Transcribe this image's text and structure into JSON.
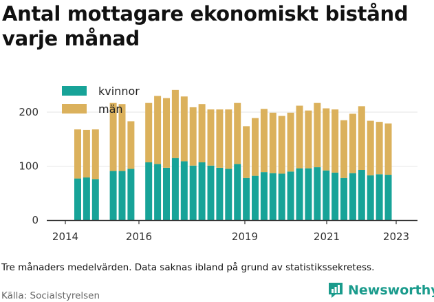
{
  "title": "Antal mottagare ekonomiskt bistånd varje månad",
  "note": "Tre månaders medelvärden. Data saknas ibland på grund av statistikssekretess.",
  "source": "Källa: Socialstyrelsen",
  "brand": "Newsworthy",
  "colors": {
    "kvinnor": "#17a398",
    "man": "#dbb15c",
    "grid": "#e6e6e6",
    "axis": "#333333"
  },
  "chart_data": {
    "type": "bar",
    "stacked": true,
    "x_ticks": [
      "2014",
      "2016",
      "2019",
      "2021",
      "2023"
    ],
    "y_ticks": [
      "0",
      "100",
      "200"
    ],
    "ylim": [
      0,
      250
    ],
    "legend_position": "top-left",
    "grid": true,
    "series": [
      {
        "name": "kvinnor",
        "values": [
          77,
          79,
          76,
          null,
          91,
          91,
          95,
          null,
          107,
          104,
          97,
          115,
          109,
          101,
          107,
          101,
          97,
          95,
          104,
          78,
          82,
          89,
          87,
          86,
          90,
          96,
          96,
          98,
          92,
          88,
          78,
          87,
          93,
          83,
          85,
          84
        ]
      },
      {
        "name": "män",
        "values": [
          91,
          88,
          92,
          null,
          126,
          124,
          88,
          null,
          110,
          126,
          129,
          126,
          120,
          108,
          108,
          104,
          108,
          110,
          113,
          96,
          107,
          117,
          112,
          107,
          109,
          116,
          107,
          119,
          115,
          117,
          107,
          110,
          118,
          101,
          97,
          95
        ]
      }
    ]
  }
}
